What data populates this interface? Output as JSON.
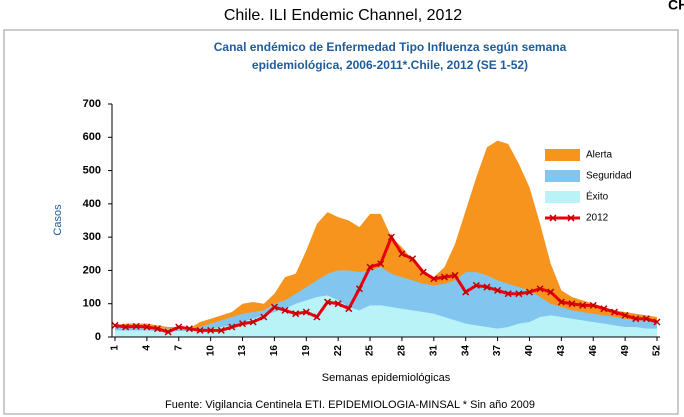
{
  "chart_data": {
    "type": "area",
    "title": "Chile. ILI Endemic Channel, 2012",
    "corner_text": "CH",
    "subtitle": [
      "Canal  endémico de Enfermedad Tipo Influenza según semana",
      "epidemiológica, 2006-2011*.Chile, 2012  (SE 1-52)"
    ],
    "y_label": "Casos",
    "x_label": "Semanas epidemiológicas",
    "source": "Fuente: Vigilancia Centinela ETI. EPIDEMIOLOGIA-MINSAL * Sin año 2009",
    "x": [
      1,
      2,
      3,
      4,
      5,
      6,
      7,
      8,
      9,
      10,
      11,
      12,
      13,
      14,
      15,
      16,
      17,
      18,
      19,
      20,
      21,
      22,
      23,
      24,
      25,
      26,
      27,
      28,
      29,
      30,
      31,
      32,
      33,
      34,
      35,
      36,
      37,
      38,
      39,
      40,
      41,
      42,
      43,
      44,
      45,
      46,
      47,
      48,
      49,
      50,
      51,
      52
    ],
    "xlim": [
      1,
      52
    ],
    "xticks": [
      1,
      4,
      7,
      10,
      13,
      16,
      19,
      22,
      25,
      28,
      31,
      34,
      37,
      40,
      43,
      46,
      49,
      52
    ],
    "ylim": [
      0,
      700
    ],
    "yticks": [
      0,
      100,
      200,
      300,
      400,
      500,
      600,
      700
    ],
    "series": [
      {
        "name": "Alerta",
        "color": "#f7941d",
        "values": [
          35,
          40,
          40,
          40,
          35,
          30,
          30,
          25,
          45,
          55,
          65,
          75,
          100,
          105,
          100,
          130,
          180,
          190,
          260,
          340,
          375,
          360,
          350,
          330,
          370,
          370,
          300,
          270,
          230,
          190,
          180,
          210,
          280,
          380,
          480,
          570,
          590,
          580,
          520,
          450,
          340,
          220,
          140,
          120,
          110,
          100,
          90,
          80,
          75,
          70,
          65,
          60
        ]
      },
      {
        "name": "Seguridad",
        "color": "#82c6f0",
        "values": [
          30,
          30,
          30,
          30,
          25,
          25,
          25,
          25,
          30,
          40,
          50,
          60,
          70,
          75,
          80,
          100,
          110,
          130,
          150,
          170,
          190,
          200,
          200,
          195,
          200,
          210,
          190,
          180,
          170,
          160,
          155,
          160,
          170,
          195,
          195,
          185,
          170,
          160,
          150,
          140,
          120,
          100,
          90,
          80,
          75,
          70,
          65,
          60,
          55,
          50,
          50,
          45
        ]
      },
      {
        "name": "Éxito",
        "color": "#b9f3f7",
        "values": [
          20,
          20,
          20,
          20,
          18,
          18,
          18,
          18,
          20,
          25,
          30,
          35,
          45,
          55,
          65,
          75,
          85,
          100,
          110,
          120,
          125,
          110,
          90,
          80,
          95,
          95,
          90,
          85,
          80,
          75,
          70,
          60,
          50,
          40,
          35,
          30,
          25,
          30,
          40,
          45,
          60,
          65,
          60,
          55,
          50,
          45,
          40,
          35,
          30,
          30,
          25,
          25
        ]
      },
      {
        "name": "2012",
        "color": "#e8000b",
        "line": true,
        "values": [
          35,
          30,
          32,
          30,
          25,
          15,
          30,
          25,
          20,
          20,
          20,
          30,
          40,
          45,
          60,
          90,
          80,
          70,
          75,
          60,
          105,
          100,
          85,
          145,
          210,
          220,
          300,
          250,
          235,
          195,
          175,
          180,
          185,
          135,
          155,
          150,
          140,
          130,
          130,
          135,
          145,
          135,
          105,
          100,
          95,
          95,
          85,
          75,
          65,
          55,
          55,
          45
        ]
      }
    ]
  }
}
